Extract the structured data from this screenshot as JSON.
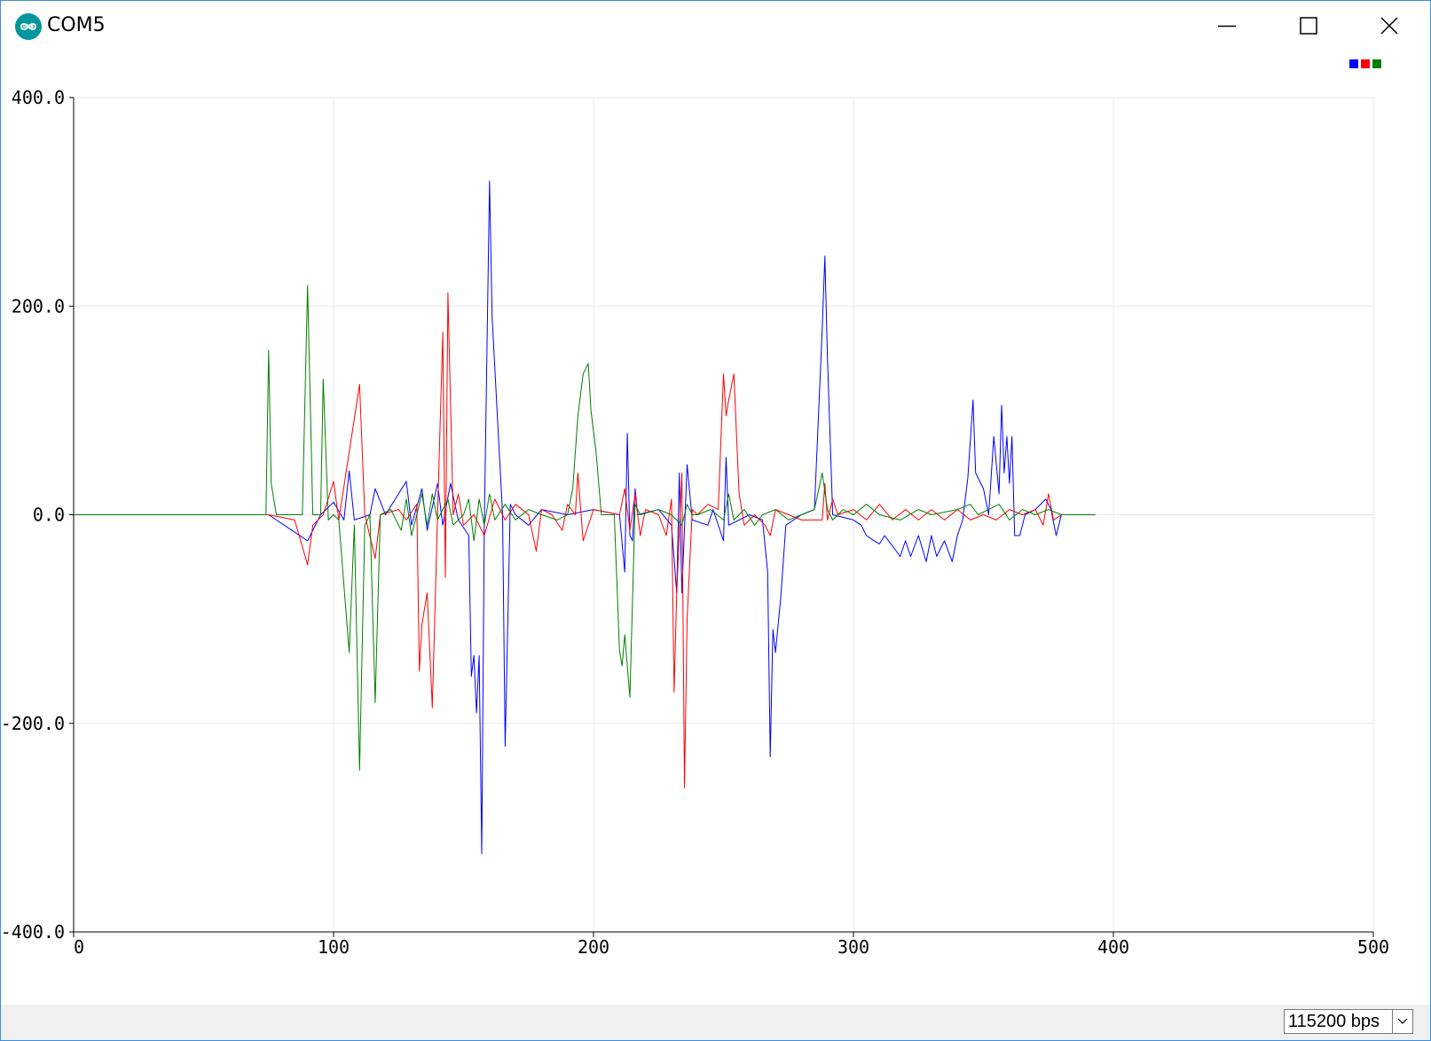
{
  "window": {
    "title": "COM5",
    "icon": "arduino-infinity-icon"
  },
  "controls": {
    "minimize_icon": "minimize-icon",
    "maximize_icon": "maximize-icon",
    "close_icon": "close-icon"
  },
  "colors": {
    "series_1": "#0000ff",
    "series_2": "#ff0000",
    "series_3": "#008000",
    "grid": "#e8e8e8",
    "status_bar": "#f0f0f0",
    "window_border": "#3c8fd8"
  },
  "status_bar": {
    "baud_rate": "115200 bps",
    "dropdown_icon": "chevron-down-icon"
  },
  "chart_data": {
    "type": "line",
    "xlim": [
      0,
      500
    ],
    "ylim": [
      -400,
      400
    ],
    "x_ticks": [
      "0",
      "100",
      "200",
      "300",
      "400",
      "500"
    ],
    "y_ticks": [
      "400.0",
      "200.0",
      "0.0",
      "-200.0",
      "-400.0"
    ],
    "grid": true,
    "legend": "top-right",
    "series": [
      {
        "color": "#0000ff",
        "points": [
          [
            0,
            0
          ],
          [
            75,
            0
          ],
          [
            90,
            -25
          ],
          [
            95,
            0
          ],
          [
            100,
            12
          ],
          [
            104,
            -5
          ],
          [
            106,
            42
          ],
          [
            108,
            -5
          ],
          [
            114,
            0
          ],
          [
            116,
            25
          ],
          [
            120,
            0
          ],
          [
            128,
            32
          ],
          [
            130,
            -10
          ],
          [
            134,
            25
          ],
          [
            136,
            -15
          ],
          [
            140,
            30
          ],
          [
            142,
            -10
          ],
          [
            145,
            30
          ],
          [
            148,
            -5
          ],
          [
            152,
            -20
          ],
          [
            153,
            -155
          ],
          [
            154,
            -135
          ],
          [
            155,
            -190
          ],
          [
            156,
            -135
          ],
          [
            157,
            -325
          ],
          [
            158,
            -10
          ],
          [
            160,
            320
          ],
          [
            161,
            190
          ],
          [
            163,
            95
          ],
          [
            165,
            0
          ],
          [
            166,
            -222
          ],
          [
            168,
            10
          ],
          [
            170,
            0
          ],
          [
            175,
            -10
          ],
          [
            180,
            5
          ],
          [
            190,
            0
          ],
          [
            200,
            5
          ],
          [
            210,
            0
          ],
          [
            212,
            -55
          ],
          [
            213,
            78
          ],
          [
            214,
            -20
          ],
          [
            215,
            -25
          ],
          [
            216,
            25
          ],
          [
            217,
            0
          ],
          [
            225,
            5
          ],
          [
            230,
            -10
          ],
          [
            232,
            -75
          ],
          [
            233,
            40
          ],
          [
            234,
            -75
          ],
          [
            236,
            48
          ],
          [
            238,
            -5
          ],
          [
            244,
            -10
          ],
          [
            246,
            5
          ],
          [
            250,
            -25
          ],
          [
            251,
            55
          ],
          [
            252,
            -10
          ],
          [
            260,
            0
          ],
          [
            265,
            -5
          ],
          [
            267,
            -55
          ],
          [
            268,
            -232
          ],
          [
            269,
            -110
          ],
          [
            270,
            -132
          ],
          [
            272,
            -80
          ],
          [
            274,
            -10
          ],
          [
            280,
            0
          ],
          [
            285,
            5
          ],
          [
            288,
            178
          ],
          [
            289,
            248
          ],
          [
            290,
            150
          ],
          [
            292,
            0
          ],
          [
            300,
            -5
          ],
          [
            303,
            -10
          ],
          [
            305,
            -20
          ],
          [
            308,
            -25
          ],
          [
            310,
            -28
          ],
          [
            312,
            -20
          ],
          [
            315,
            -30
          ],
          [
            318,
            -40
          ],
          [
            320,
            -25
          ],
          [
            322,
            -40
          ],
          [
            325,
            -20
          ],
          [
            328,
            -45
          ],
          [
            330,
            -20
          ],
          [
            332,
            -40
          ],
          [
            335,
            -25
          ],
          [
            338,
            -45
          ],
          [
            340,
            -20
          ],
          [
            342,
            -5
          ],
          [
            344,
            35
          ],
          [
            346,
            110
          ],
          [
            347,
            40
          ],
          [
            350,
            25
          ],
          [
            352,
            0
          ],
          [
            354,
            75
          ],
          [
            356,
            20
          ],
          [
            357,
            105
          ],
          [
            358,
            40
          ],
          [
            359,
            75
          ],
          [
            360,
            30
          ],
          [
            361,
            75
          ],
          [
            362,
            -20
          ],
          [
            364,
            -20
          ],
          [
            366,
            0
          ],
          [
            370,
            5
          ],
          [
            374,
            15
          ],
          [
            376,
            5
          ],
          [
            378,
            -20
          ],
          [
            380,
            0
          ],
          [
            393,
            0
          ]
        ]
      },
      {
        "color": "#ff0000",
        "points": [
          [
            0,
            0
          ],
          [
            75,
            0
          ],
          [
            85,
            -5
          ],
          [
            90,
            -48
          ],
          [
            92,
            -10
          ],
          [
            96,
            0
          ],
          [
            100,
            32
          ],
          [
            102,
            -5
          ],
          [
            110,
            125
          ],
          [
            112,
            0
          ],
          [
            116,
            -42
          ],
          [
            118,
            0
          ],
          [
            125,
            5
          ],
          [
            128,
            -5
          ],
          [
            132,
            10
          ],
          [
            133,
            -150
          ],
          [
            134,
            -105
          ],
          [
            136,
            -75
          ],
          [
            138,
            -185
          ],
          [
            140,
            0
          ],
          [
            142,
            175
          ],
          [
            143,
            -60
          ],
          [
            144,
            213
          ],
          [
            146,
            0
          ],
          [
            148,
            20
          ],
          [
            150,
            -10
          ],
          [
            154,
            0
          ],
          [
            158,
            -20
          ],
          [
            162,
            15
          ],
          [
            166,
            -5
          ],
          [
            170,
            10
          ],
          [
            175,
            0
          ],
          [
            178,
            -35
          ],
          [
            180,
            5
          ],
          [
            184,
            0
          ],
          [
            188,
            -15
          ],
          [
            190,
            10
          ],
          [
            193,
            0
          ],
          [
            194,
            40
          ],
          [
            196,
            -25
          ],
          [
            200,
            5
          ],
          [
            210,
            0
          ],
          [
            212,
            25
          ],
          [
            214,
            -15
          ],
          [
            216,
            20
          ],
          [
            218,
            -20
          ],
          [
            220,
            5
          ],
          [
            225,
            0
          ],
          [
            228,
            -20
          ],
          [
            230,
            15
          ],
          [
            231,
            -170
          ],
          [
            232,
            -75
          ],
          [
            234,
            40
          ],
          [
            235,
            -262
          ],
          [
            236,
            -100
          ],
          [
            238,
            5
          ],
          [
            240,
            0
          ],
          [
            244,
            10
          ],
          [
            248,
            5
          ],
          [
            250,
            135
          ],
          [
            251,
            95
          ],
          [
            252,
            110
          ],
          [
            254,
            135
          ],
          [
            256,
            20
          ],
          [
            258,
            -10
          ],
          [
            262,
            0
          ],
          [
            266,
            -10
          ],
          [
            268,
            -20
          ],
          [
            270,
            5
          ],
          [
            275,
            0
          ],
          [
            280,
            -5
          ],
          [
            288,
            -5
          ],
          [
            289,
            30
          ],
          [
            290,
            -5
          ],
          [
            292,
            15
          ],
          [
            294,
            0
          ],
          [
            300,
            5
          ],
          [
            305,
            -5
          ],
          [
            310,
            10
          ],
          [
            315,
            -5
          ],
          [
            320,
            5
          ],
          [
            325,
            -5
          ],
          [
            330,
            5
          ],
          [
            335,
            -5
          ],
          [
            340,
            5
          ],
          [
            345,
            -5
          ],
          [
            350,
            0
          ],
          [
            355,
            -5
          ],
          [
            360,
            5
          ],
          [
            365,
            0
          ],
          [
            370,
            5
          ],
          [
            373,
            -10
          ],
          [
            375,
            20
          ],
          [
            377,
            -5
          ],
          [
            380,
            0
          ],
          [
            393,
            0
          ]
        ]
      },
      {
        "color": "#008000",
        "points": [
          [
            0,
            0
          ],
          [
            74,
            0
          ],
          [
            75,
            158
          ],
          [
            76,
            30
          ],
          [
            78,
            0
          ],
          [
            88,
            0
          ],
          [
            90,
            220
          ],
          [
            92,
            0
          ],
          [
            95,
            0
          ],
          [
            96,
            130
          ],
          [
            98,
            -5
          ],
          [
            100,
            0
          ],
          [
            102,
            -5
          ],
          [
            106,
            -132
          ],
          [
            108,
            -10
          ],
          [
            110,
            -245
          ],
          [
            112,
            -10
          ],
          [
            114,
            0
          ],
          [
            116,
            -180
          ],
          [
            118,
            0
          ],
          [
            122,
            5
          ],
          [
            126,
            -15
          ],
          [
            128,
            15
          ],
          [
            130,
            -20
          ],
          [
            134,
            20
          ],
          [
            136,
            -10
          ],
          [
            138,
            20
          ],
          [
            140,
            -5
          ],
          [
            144,
            15
          ],
          [
            146,
            -10
          ],
          [
            150,
            0
          ],
          [
            152,
            15
          ],
          [
            154,
            -25
          ],
          [
            156,
            15
          ],
          [
            158,
            -10
          ],
          [
            160,
            20
          ],
          [
            162,
            -5
          ],
          [
            166,
            10
          ],
          [
            170,
            -5
          ],
          [
            175,
            5
          ],
          [
            180,
            0
          ],
          [
            186,
            -5
          ],
          [
            190,
            0
          ],
          [
            192,
            25
          ],
          [
            194,
            95
          ],
          [
            196,
            135
          ],
          [
            198,
            145
          ],
          [
            199,
            100
          ],
          [
            201,
            60
          ],
          [
            203,
            0
          ],
          [
            205,
            0
          ],
          [
            208,
            0
          ],
          [
            210,
            -130
          ],
          [
            211,
            -145
          ],
          [
            212,
            -115
          ],
          [
            214,
            -175
          ],
          [
            216,
            10
          ],
          [
            218,
            0
          ],
          [
            225,
            5
          ],
          [
            230,
            0
          ],
          [
            234,
            -10
          ],
          [
            236,
            10
          ],
          [
            238,
            0
          ],
          [
            240,
            0
          ],
          [
            245,
            5
          ],
          [
            250,
            -5
          ],
          [
            252,
            20
          ],
          [
            254,
            -5
          ],
          [
            258,
            5
          ],
          [
            262,
            -10
          ],
          [
            265,
            0
          ],
          [
            270,
            5
          ],
          [
            275,
            -5
          ],
          [
            280,
            0
          ],
          [
            285,
            5
          ],
          [
            288,
            40
          ],
          [
            290,
            5
          ],
          [
            292,
            -5
          ],
          [
            296,
            5
          ],
          [
            300,
            0
          ],
          [
            305,
            10
          ],
          [
            310,
            0
          ],
          [
            318,
            -5
          ],
          [
            325,
            5
          ],
          [
            330,
            0
          ],
          [
            340,
            5
          ],
          [
            345,
            10
          ],
          [
            348,
            0
          ],
          [
            352,
            5
          ],
          [
            356,
            10
          ],
          [
            360,
            -5
          ],
          [
            365,
            5
          ],
          [
            370,
            0
          ],
          [
            375,
            5
          ],
          [
            380,
            0
          ],
          [
            393,
            0
          ]
        ]
      }
    ]
  }
}
